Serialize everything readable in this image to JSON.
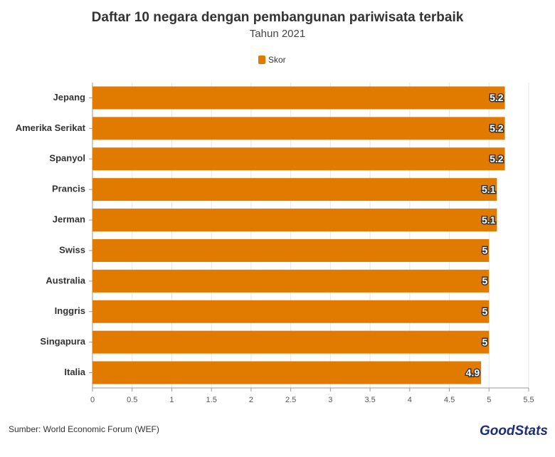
{
  "chart_data": {
    "type": "hbar",
    "title": "Daftar 10 negara dengan pembangunan pariwisata terbaik",
    "subtitle": "Tahun 2021",
    "categories": [
      "Jepang",
      "Amerika Serikat",
      "Spanyol",
      "Prancis",
      "Jerman",
      "Swiss",
      "Australia",
      "Inggris",
      "Singapura",
      "Italia"
    ],
    "series": [
      {
        "name": "Skor",
        "color": "#e07b00",
        "values": [
          5.2,
          5.2,
          5.2,
          5.1,
          5.1,
          5,
          5,
          5,
          5,
          4.9
        ]
      }
    ],
    "xlim": [
      0,
      5.5
    ],
    "xticks": [
      0,
      0.5,
      1,
      1.5,
      2,
      2.5,
      3,
      3.5,
      4,
      4.5,
      5,
      5.5
    ],
    "grid": true,
    "legend": "top",
    "source": "Sumber: World Economic Forum (WEF)",
    "brand": "GoodStats"
  }
}
